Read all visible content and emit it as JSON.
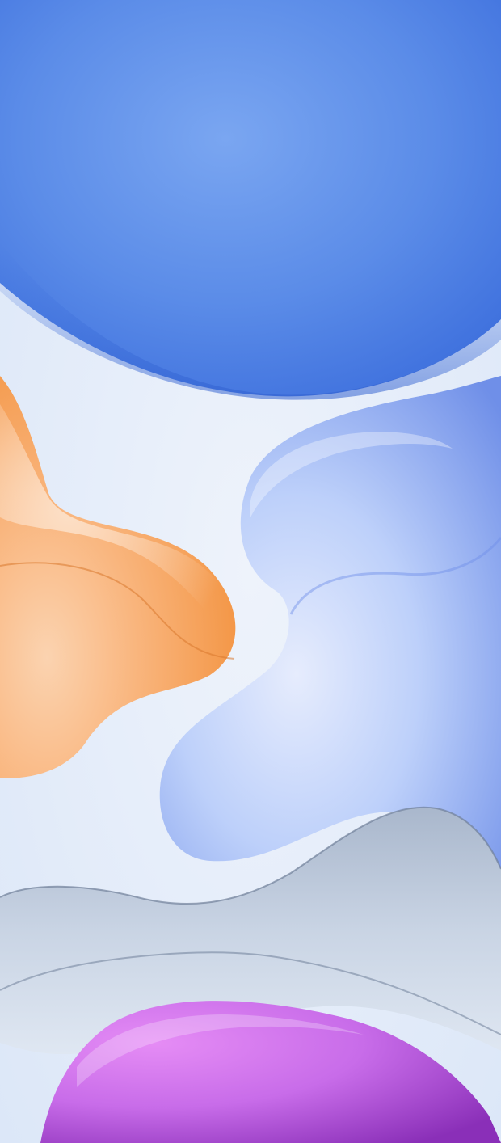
{
  "wallpaper": {
    "colors": {
      "background": "#e6eef9",
      "blue_dome": "#5b8ce8",
      "blue_dome_dark": "#3d6fdd",
      "orange_blob": "#f7a865",
      "orange_blob_light": "#fbd3b0",
      "periwinkle_blob": "#a9c0f7",
      "periwinkle_blob_dark": "#6f8fe8",
      "gray_wave": "#b8c6da",
      "gray_wave_dark": "#8e9cb3",
      "purple_blob": "#c15fe6",
      "purple_blob_light": "#e58cf5"
    },
    "shapes": [
      "blue-dome",
      "orange-blob",
      "periwinkle-blob",
      "gray-wave",
      "purple-blob"
    ]
  }
}
